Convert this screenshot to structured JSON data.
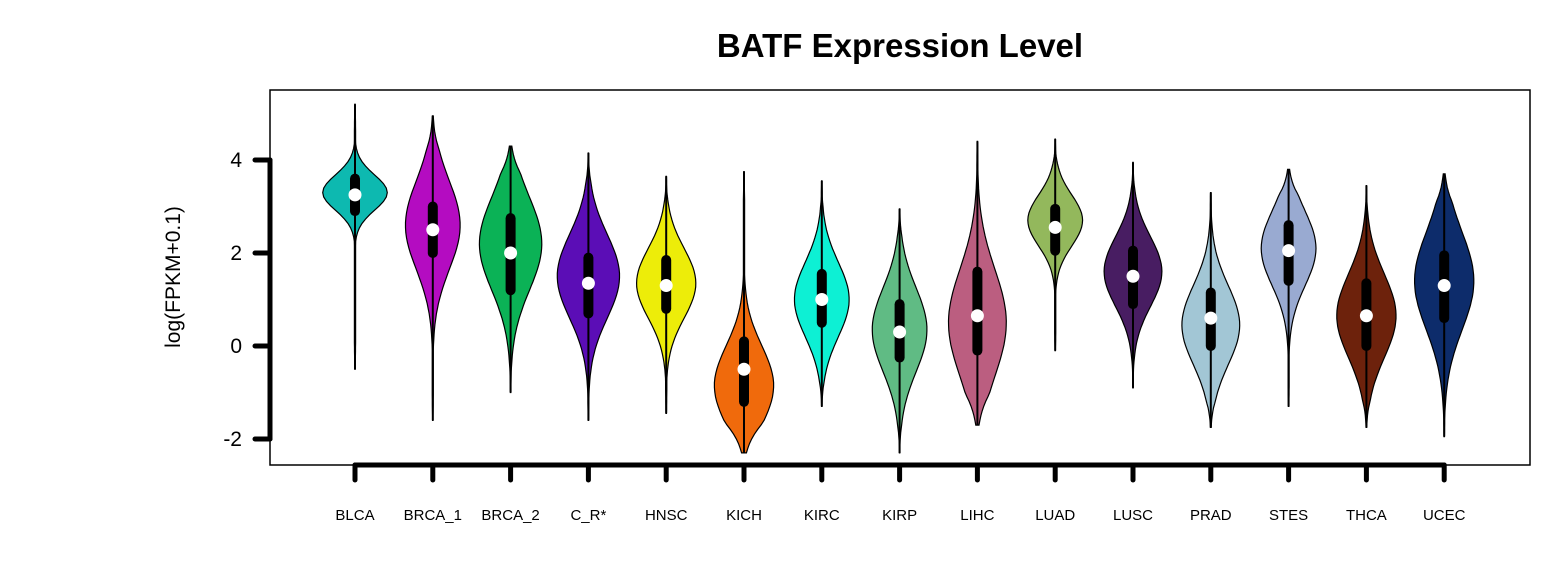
{
  "chart_data": {
    "type": "violin",
    "title": "BATF Expression Level",
    "xlabel": "",
    "ylabel": "log(FPKM+0.1)",
    "ylim": [
      -2.6,
      5.5
    ],
    "yticks": [
      4,
      2,
      0,
      -2
    ],
    "ytick_labels": [
      "4",
      "2",
      "0",
      "-2"
    ],
    "grid": false,
    "legend": "none",
    "categories": [
      "BLCA",
      "BRCA_1",
      "BRCA_2",
      "C_R*",
      "HNSC",
      "KICH",
      "KIRC",
      "KIRP",
      "LIHC",
      "LUAD",
      "LUSC",
      "PRAD",
      "STES",
      "THCA",
      "UCEC"
    ],
    "series": [
      {
        "category": "BLCA",
        "color": "#0db9b0",
        "min": -0.5,
        "max": 5.2,
        "q1": 2.9,
        "median": 3.25,
        "q3": 3.6,
        "mode": 3.3,
        "width": 0.85,
        "spread": 0.38
      },
      {
        "category": "BRCA_1",
        "color": "#b40cc1",
        "min": -1.6,
        "max": 4.95,
        "q1": 2.0,
        "median": 2.5,
        "q3": 3.0,
        "mode": 2.6,
        "width": 0.72,
        "spread": 0.95
      },
      {
        "category": "BRCA_2",
        "color": "#0bb256",
        "min": -1.0,
        "max": 4.3,
        "q1": 1.2,
        "median": 2.0,
        "q3": 2.75,
        "mode": 2.2,
        "width": 0.82,
        "spread": 1.0
      },
      {
        "category": "C_R*",
        "color": "#5b0db6",
        "min": -1.6,
        "max": 4.15,
        "q1": 0.7,
        "median": 1.35,
        "q3": 1.9,
        "mode": 1.5,
        "width": 0.82,
        "spread": 0.9
      },
      {
        "category": "HNSC",
        "color": "#eded09",
        "min": -1.45,
        "max": 3.65,
        "q1": 0.8,
        "median": 1.3,
        "q3": 1.85,
        "mode": 1.35,
        "width": 0.78,
        "spread": 0.75
      },
      {
        "category": "KICH",
        "color": "#f06a0c",
        "min": -2.3,
        "max": 3.75,
        "q1": -1.2,
        "median": -0.5,
        "q3": 0.1,
        "mode": -0.85,
        "width": 0.78,
        "spread": 0.85
      },
      {
        "category": "KIRC",
        "color": "#0df0d4",
        "min": -1.3,
        "max": 3.55,
        "q1": 0.5,
        "median": 1.0,
        "q3": 1.55,
        "mode": 1.0,
        "width": 0.72,
        "spread": 0.8
      },
      {
        "category": "KIRP",
        "color": "#60bb84",
        "min": -2.3,
        "max": 2.95,
        "q1": -0.25,
        "median": 0.3,
        "q3": 0.9,
        "mode": 0.35,
        "width": 0.72,
        "spread": 0.9
      },
      {
        "category": "LIHC",
        "color": "#bb5e80",
        "min": -1.7,
        "max": 4.4,
        "q1": -0.1,
        "median": 0.65,
        "q3": 1.6,
        "mode": 0.5,
        "width": 0.76,
        "spread": 1.15
      },
      {
        "category": "LUAD",
        "color": "#93b85c",
        "min": -0.1,
        "max": 4.45,
        "q1": 2.05,
        "median": 2.55,
        "q3": 2.95,
        "mode": 2.7,
        "width": 0.72,
        "spread": 0.55
      },
      {
        "category": "LUSC",
        "color": "#481d62",
        "min": -0.9,
        "max": 3.95,
        "q1": 0.9,
        "median": 1.5,
        "q3": 2.05,
        "mode": 1.6,
        "width": 0.76,
        "spread": 0.75
      },
      {
        "category": "PRAD",
        "color": "#a2c6d5",
        "min": -1.75,
        "max": 3.3,
        "q1": 0.0,
        "median": 0.6,
        "q3": 1.15,
        "mode": 0.45,
        "width": 0.76,
        "spread": 0.85
      },
      {
        "category": "STES",
        "color": "#99aad1",
        "min": -1.3,
        "max": 3.8,
        "q1": 1.4,
        "median": 2.05,
        "q3": 2.6,
        "mode": 2.1,
        "width": 0.72,
        "spread": 0.8
      },
      {
        "category": "THCA",
        "color": "#6d220c",
        "min": -1.75,
        "max": 3.45,
        "q1": 0.0,
        "median": 0.65,
        "q3": 1.35,
        "mode": 0.65,
        "width": 0.78,
        "spread": 0.9
      },
      {
        "category": "UCEC",
        "color": "#0d2c6b",
        "min": -1.95,
        "max": 3.7,
        "q1": 0.6,
        "median": 1.3,
        "q3": 1.95,
        "mode": 1.4,
        "width": 0.78,
        "spread": 1.05
      }
    ]
  }
}
